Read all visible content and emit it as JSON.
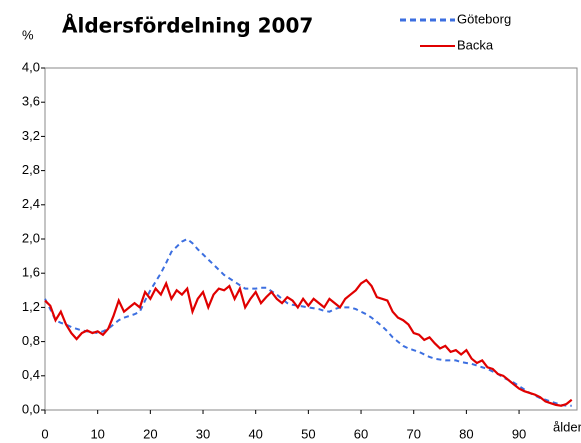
{
  "chart_data": {
    "type": "line",
    "title": "Åldersfördelning 2007",
    "y_label": "%",
    "x_label": "ålder",
    "x": [
      0,
      1,
      2,
      3,
      4,
      5,
      6,
      7,
      8,
      9,
      10,
      11,
      12,
      13,
      14,
      15,
      16,
      17,
      18,
      19,
      20,
      21,
      22,
      23,
      24,
      25,
      26,
      27,
      28,
      29,
      30,
      31,
      32,
      33,
      34,
      35,
      36,
      37,
      38,
      39,
      40,
      41,
      42,
      43,
      44,
      45,
      46,
      47,
      48,
      49,
      50,
      51,
      52,
      53,
      54,
      55,
      56,
      57,
      58,
      59,
      60,
      61,
      62,
      63,
      64,
      65,
      66,
      67,
      68,
      69,
      70,
      71,
      72,
      73,
      74,
      75,
      76,
      77,
      78,
      79,
      80,
      81,
      82,
      83,
      84,
      85,
      86,
      87,
      88,
      89,
      90,
      91,
      92,
      93,
      94,
      95,
      96,
      97,
      98,
      99,
      100
    ],
    "series": [
      {
        "name": "Göteborg",
        "color": "#3c6fe0",
        "dashed": true,
        "values": [
          1.3,
          1.18,
          1.05,
          1.02,
          1.0,
          0.97,
          0.95,
          0.93,
          0.92,
          0.91,
          0.9,
          0.92,
          0.95,
          1.0,
          1.05,
          1.08,
          1.1,
          1.12,
          1.15,
          1.28,
          1.4,
          1.5,
          1.6,
          1.72,
          1.85,
          1.91,
          1.97,
          2.0,
          1.95,
          1.88,
          1.82,
          1.76,
          1.7,
          1.64,
          1.58,
          1.54,
          1.5,
          1.46,
          1.42,
          1.42,
          1.42,
          1.43,
          1.43,
          1.39,
          1.35,
          1.3,
          1.25,
          1.23,
          1.22,
          1.21,
          1.2,
          1.19,
          1.18,
          1.16,
          1.15,
          1.18,
          1.2,
          1.2,
          1.2,
          1.18,
          1.15,
          1.12,
          1.08,
          1.03,
          0.98,
          0.92,
          0.85,
          0.8,
          0.75,
          0.72,
          0.7,
          0.68,
          0.65,
          0.62,
          0.6,
          0.59,
          0.58,
          0.58,
          0.58,
          0.56,
          0.55,
          0.54,
          0.52,
          0.5,
          0.48,
          0.45,
          0.42,
          0.38,
          0.35,
          0.32,
          0.28,
          0.24,
          0.2,
          0.17,
          0.14,
          0.12,
          0.1,
          0.08,
          0.06,
          0.05,
          0.05
        ]
      },
      {
        "name": "Backa",
        "color": "#e00000",
        "dashed": false,
        "values": [
          1.28,
          1.22,
          1.05,
          1.15,
          1.0,
          0.9,
          0.83,
          0.9,
          0.93,
          0.9,
          0.92,
          0.88,
          0.95,
          1.1,
          1.28,
          1.15,
          1.2,
          1.25,
          1.2,
          1.38,
          1.3,
          1.42,
          1.35,
          1.48,
          1.3,
          1.4,
          1.35,
          1.42,
          1.15,
          1.3,
          1.38,
          1.2,
          1.35,
          1.42,
          1.4,
          1.45,
          1.3,
          1.42,
          1.2,
          1.3,
          1.38,
          1.25,
          1.32,
          1.38,
          1.3,
          1.25,
          1.32,
          1.28,
          1.2,
          1.3,
          1.22,
          1.3,
          1.25,
          1.2,
          1.3,
          1.25,
          1.2,
          1.3,
          1.35,
          1.4,
          1.48,
          1.52,
          1.45,
          1.32,
          1.3,
          1.28,
          1.15,
          1.08,
          1.05,
          1.0,
          0.9,
          0.88,
          0.82,
          0.85,
          0.78,
          0.72,
          0.75,
          0.68,
          0.7,
          0.65,
          0.7,
          0.6,
          0.55,
          0.58,
          0.5,
          0.48,
          0.42,
          0.4,
          0.35,
          0.3,
          0.25,
          0.22,
          0.2,
          0.18,
          0.15,
          0.1,
          0.08,
          0.06,
          0.05,
          0.07,
          0.12
        ]
      }
    ],
    "xlim": [
      0,
      101
    ],
    "xticks": [
      0,
      10,
      20,
      30,
      40,
      50,
      60,
      70,
      80,
      90
    ],
    "ylim": [
      0,
      4
    ],
    "yticks": [
      {
        "value": 0,
        "label": "0,0"
      },
      {
        "value": 0.4,
        "label": "0,4"
      },
      {
        "value": 0.8,
        "label": "0,8"
      },
      {
        "value": 1.2,
        "label": "1,2"
      },
      {
        "value": 1.6,
        "label": "1,6"
      },
      {
        "value": 2.0,
        "label": "2,0"
      },
      {
        "value": 2.4,
        "label": "2,4"
      },
      {
        "value": 2.8,
        "label": "2,8"
      },
      {
        "value": 3.2,
        "label": "3,2"
      },
      {
        "value": 3.6,
        "label": "3,6"
      },
      {
        "value": 4.0,
        "label": "4,0"
      }
    ],
    "grid": false,
    "legend": "top-right"
  }
}
